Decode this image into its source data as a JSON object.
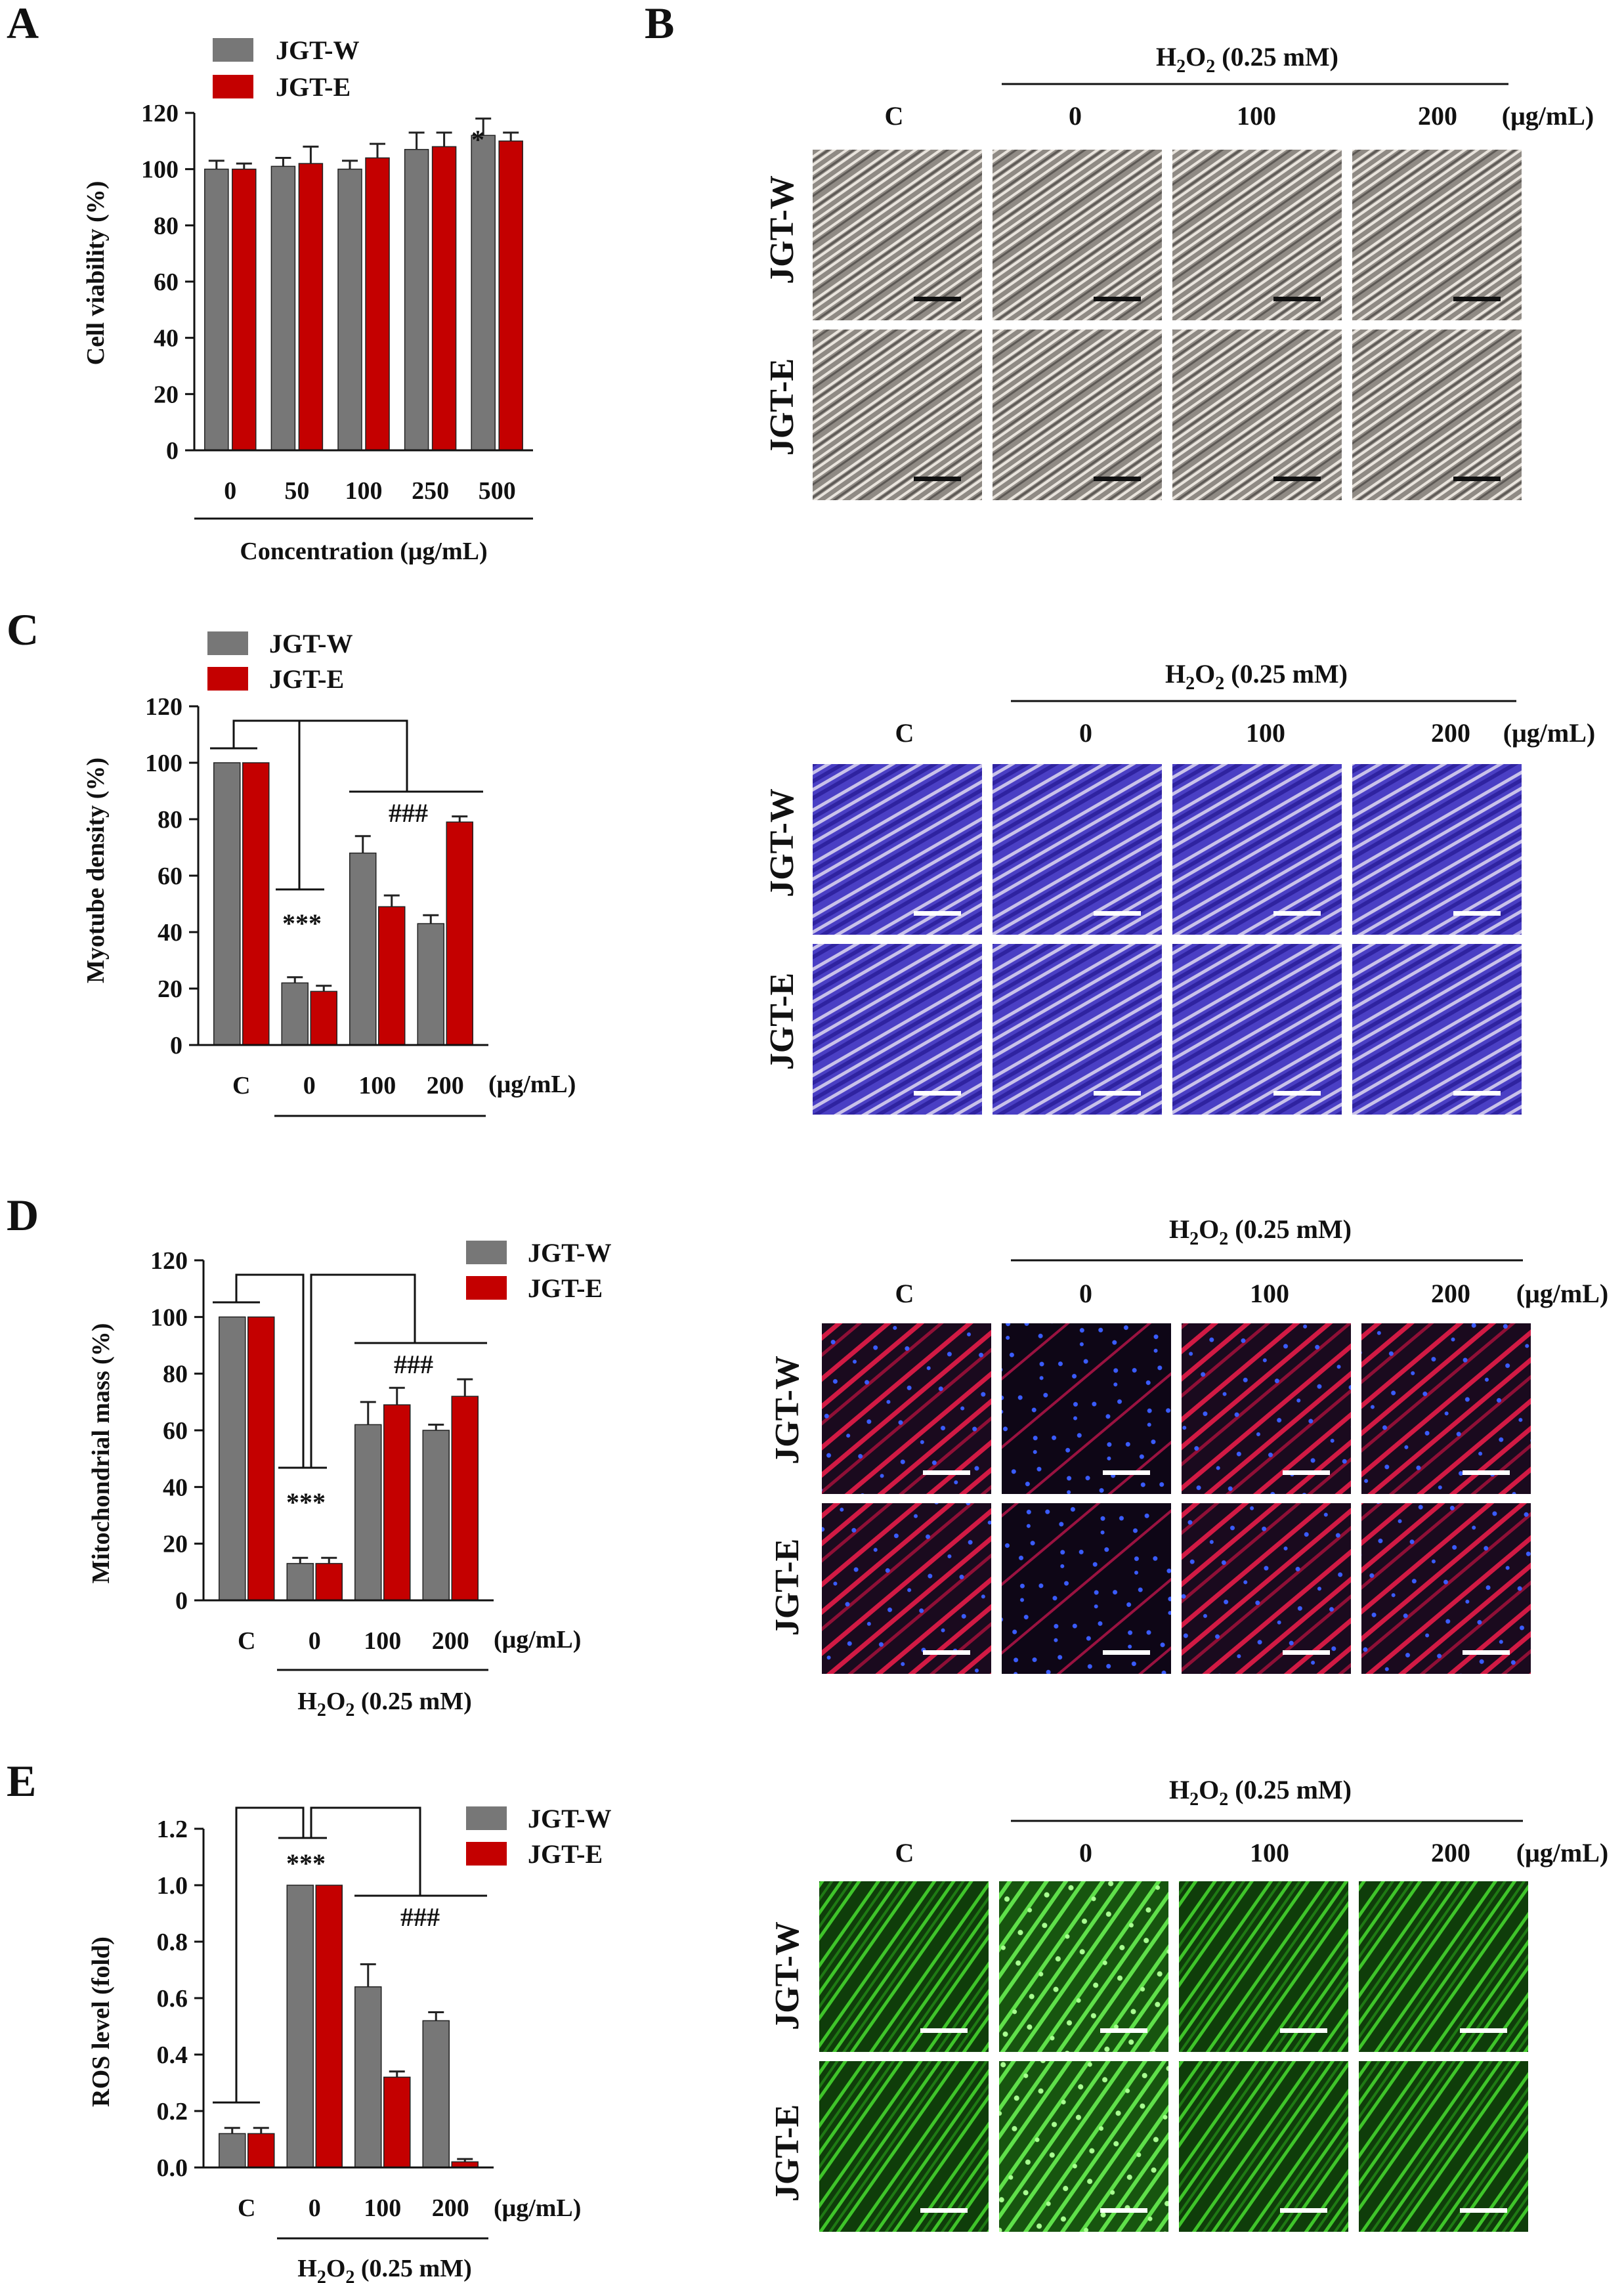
{
  "colors": {
    "jgt_w": "#777777",
    "jgt_e": "#C40000",
    "axis": "#111111"
  },
  "panel_A": {
    "letter": "A",
    "chart_data": {
      "type": "bar",
      "categories": [
        "0",
        "50",
        "100",
        "250",
        "500"
      ],
      "series": [
        {
          "name": "JGT-W",
          "values": [
            100,
            101,
            100,
            107,
            112
          ],
          "errors": [
            3,
            3,
            3,
            6,
            6
          ]
        },
        {
          "name": "JGT-E",
          "values": [
            100,
            102,
            104,
            108,
            110
          ],
          "errors": [
            2,
            6,
            5,
            5,
            3
          ]
        }
      ],
      "ylabel": "Cell viability (%)",
      "xlabel": "Concentration (μg/mL)",
      "ylim": [
        0,
        120
      ],
      "yticks": [
        0,
        20,
        40,
        60,
        80,
        100,
        120
      ],
      "annotations": [
        {
          "text": "*",
          "category": "500",
          "series": "JGT-W"
        }
      ],
      "legend": "top-left"
    }
  },
  "panel_B": {
    "letter": "B",
    "h2o2_prefix": "H",
    "h2o2_suffix": " (0.25 mM)",
    "columns": [
      "C",
      "0",
      "100",
      "200"
    ],
    "unit": "(μg/mL)",
    "rows": [
      "JGT-W",
      "JGT-E"
    ]
  },
  "panel_C": {
    "letter": "C",
    "chart_data": {
      "type": "bar",
      "categories": [
        "C",
        "0",
        "100",
        "200"
      ],
      "series": [
        {
          "name": "JGT-W",
          "values": [
            100,
            22,
            68,
            43
          ],
          "errors": [
            0,
            2,
            6,
            3
          ]
        },
        {
          "name": "JGT-E",
          "values": [
            100,
            19,
            49,
            79
          ],
          "errors": [
            0,
            2,
            4,
            2
          ]
        }
      ],
      "ylabel": "Myotube density (%)",
      "unit_label": "(μg/mL)",
      "ylim": [
        0,
        120
      ],
      "yticks": [
        0,
        20,
        40,
        60,
        80,
        100,
        120
      ],
      "annotations": [
        "***",
        "###"
      ],
      "legend": "top-left"
    },
    "h2o2_prefix": "H",
    "h2o2_suffix": " (0.25 mM)",
    "columns": [
      "C",
      "0",
      "100",
      "200"
    ],
    "col_unit": "(μg/mL)",
    "rows": [
      "JGT-W",
      "JGT-E"
    ]
  },
  "panel_D": {
    "letter": "D",
    "chart_data": {
      "type": "bar",
      "categories": [
        "C",
        "0",
        "100",
        "200"
      ],
      "series": [
        {
          "name": "JGT-W",
          "values": [
            100,
            13,
            62,
            60
          ],
          "errors": [
            0,
            2,
            8,
            2
          ]
        },
        {
          "name": "JGT-E",
          "values": [
            100,
            13,
            69,
            72
          ],
          "errors": [
            0,
            2,
            6,
            6
          ]
        }
      ],
      "ylabel": "Mitochondrial mass (%)",
      "unit_label": "(μg/mL)",
      "xgroup_prefix": "H",
      "xgroup_suffix": " (0.25 mM)",
      "ylim": [
        0,
        120
      ],
      "yticks": [
        0,
        20,
        40,
        60,
        80,
        100,
        120
      ],
      "annotations": [
        "***",
        "###"
      ],
      "legend": "top-right"
    },
    "h2o2_prefix": "H",
    "h2o2_suffix": " (0.25 mM)",
    "columns": [
      "C",
      "0",
      "100",
      "200"
    ],
    "col_unit": "(μg/mL)",
    "rows": [
      "JGT-W",
      "JGT-E"
    ]
  },
  "panel_E": {
    "letter": "E",
    "chart_data": {
      "type": "bar",
      "categories": [
        "C",
        "0",
        "100",
        "200"
      ],
      "series": [
        {
          "name": "JGT-W",
          "values": [
            0.12,
            1.0,
            0.64,
            0.52
          ],
          "errors": [
            0.02,
            0,
            0.08,
            0.03
          ]
        },
        {
          "name": "JGT-E",
          "values": [
            0.12,
            1.0,
            0.32,
            0.02
          ],
          "errors": [
            0.02,
            0,
            0.02,
            0.01
          ]
        }
      ],
      "ylabel": "ROS level (fold)",
      "unit_label": "(μg/mL)",
      "xgroup_prefix": "H",
      "xgroup_suffix": " (0.25 mM)",
      "ylim": [
        0,
        1.2
      ],
      "yticks": [
        "0.0",
        "0.2",
        "0.4",
        "0.6",
        "0.8",
        "1.0",
        "1.2"
      ],
      "annotations": [
        "***",
        "###"
      ],
      "legend": "top-right"
    },
    "h2o2_prefix": "H",
    "h2o2_suffix": " (0.25 mM)",
    "columns": [
      "C",
      "0",
      "100",
      "200"
    ],
    "col_unit": "(μg/mL)",
    "rows": [
      "JGT-W",
      "JGT-E"
    ]
  }
}
